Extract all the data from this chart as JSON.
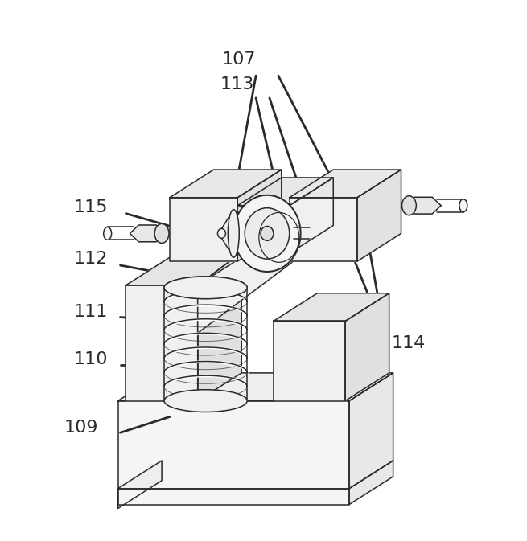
{
  "bg_color": "#ffffff",
  "line_color": "#2a2a2a",
  "line_width": 1.1,
  "label_fontsize": 16,
  "figsize": [
    6.55,
    6.73
  ],
  "dpi": 100
}
